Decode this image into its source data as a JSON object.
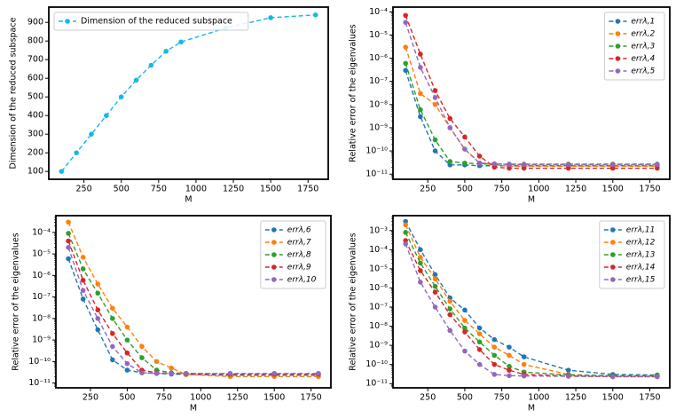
{
  "chart_data": [
    {
      "type": "line",
      "xlabel": "M",
      "ylabel": "Dimension of the reduced subspace",
      "x": [
        100,
        200,
        300,
        400,
        500,
        600,
        700,
        800,
        900,
        1200,
        1500,
        1800
      ],
      "xlim": [
        15,
        1885
      ],
      "xticks": [
        250,
        500,
        750,
        1000,
        1250,
        1500,
        1750
      ],
      "ylim": [
        58,
        982
      ],
      "yticks": [
        100,
        200,
        300,
        400,
        500,
        600,
        700,
        800,
        900
      ],
      "legend": "upper left",
      "series": [
        {
          "name": "Dimension of the reduced subspace",
          "color": "#17b8e8",
          "values": [
            100,
            200,
            300,
            400,
            500,
            590,
            670,
            745,
            795,
            870,
            925,
            940
          ]
        }
      ]
    },
    {
      "type": "line",
      "xlabel": "M",
      "ylabel": "Relative error of the eigenvalues",
      "yscale": "log",
      "x": [
        100,
        200,
        300,
        400,
        500,
        600,
        700,
        800,
        900,
        1200,
        1500,
        1800
      ],
      "xlim": [
        15,
        1885
      ],
      "xticks": [
        250,
        500,
        750,
        1000,
        1250,
        1500,
        1750
      ],
      "ylim": [
        6e-12,
        0.00016
      ],
      "yticks": [
        {
          "value": 1e-11,
          "label": "10⁻¹¹"
        },
        {
          "value": 1e-10,
          "label": "10⁻¹⁰"
        },
        {
          "value": 1e-09,
          "label": "10⁻⁹"
        },
        {
          "value": 1e-08,
          "label": "10⁻⁸"
        },
        {
          "value": 1e-07,
          "label": "10⁻⁷"
        },
        {
          "value": 1e-06,
          "label": "10⁻⁶"
        },
        {
          "value": 1e-05,
          "label": "10⁻⁵"
        },
        {
          "value": 0.0001,
          "label": "10⁻⁴"
        }
      ],
      "legend": "upper right",
      "series": [
        {
          "name": "errλ,1",
          "color": "#1f77b4",
          "values": [
            3e-07,
            3e-09,
            1e-10,
            2.5e-11,
            2.5e-11,
            2.3e-11,
            2.3e-11,
            2.3e-11,
            2.3e-11,
            2.3e-11,
            2.3e-11,
            2.3e-11
          ]
        },
        {
          "name": "errλ,2",
          "color": "#ff7f0e",
          "values": [
            3e-06,
            3e-08,
            1e-08,
            1e-09,
            1.2e-10,
            3e-11,
            2.5e-11,
            2.2e-11,
            2.2e-11,
            2.2e-11,
            2.2e-11,
            2.2e-11
          ]
        },
        {
          "name": "errλ,3",
          "color": "#2ca02c",
          "values": [
            6e-07,
            6e-09,
            3e-10,
            3.5e-11,
            3e-11,
            2.8e-11,
            2.7e-11,
            2.7e-11,
            2.7e-11,
            2.7e-11,
            2.7e-11,
            2.7e-11
          ]
        },
        {
          "name": "errλ,4",
          "color": "#d62728",
          "values": [
            7e-05,
            1.5e-06,
            4e-08,
            2.5e-09,
            4e-10,
            6e-11,
            2e-11,
            1.8e-11,
            1.8e-11,
            1.8e-11,
            1.8e-11,
            1.8e-11
          ]
        },
        {
          "name": "errλ,5",
          "color": "#9467bd",
          "values": [
            3.5e-05,
            4e-07,
            2e-08,
            1e-09,
            1.2e-10,
            3e-11,
            2.8e-11,
            2.6e-11,
            2.6e-11,
            2.6e-11,
            2.6e-11,
            2.6e-11
          ]
        }
      ]
    },
    {
      "type": "line",
      "xlabel": "M",
      "ylabel": "Relative error of the eigenvalues",
      "yscale": "log",
      "x": [
        100,
        200,
        300,
        400,
        500,
        600,
        700,
        800,
        900,
        1200,
        1500,
        1800
      ],
      "xlim": [
        15,
        1885
      ],
      "xticks": [
        250,
        500,
        750,
        1000,
        1250,
        1500,
        1750
      ],
      "ylim": [
        6e-12,
        0.0006
      ],
      "yticks": [
        {
          "value": 1e-11,
          "label": "10⁻¹¹"
        },
        {
          "value": 1e-10,
          "label": "10⁻¹⁰"
        },
        {
          "value": 1e-09,
          "label": "10⁻⁹"
        },
        {
          "value": 1e-08,
          "label": "10⁻⁸"
        },
        {
          "value": 1e-07,
          "label": "10⁻⁷"
        },
        {
          "value": 1e-06,
          "label": "10⁻⁶"
        },
        {
          "value": 1e-05,
          "label": "10⁻⁵"
        },
        {
          "value": 0.0001,
          "label": "10⁻⁴"
        }
      ],
      "legend": "upper right",
      "series": [
        {
          "name": "errλ,6",
          "color": "#1f77b4",
          "values": [
            6e-06,
            8e-08,
            3e-09,
            1.2e-10,
            4e-11,
            3e-11,
            2.8e-11,
            2.6e-11,
            2.5e-11,
            2.3e-11,
            2.3e-11,
            2.3e-11
          ]
        },
        {
          "name": "errλ,7",
          "color": "#ff7f0e",
          "values": [
            0.0003,
            7e-06,
            4e-07,
            3e-08,
            4e-09,
            5e-10,
            1e-10,
            5e-11,
            2.5e-11,
            2e-11,
            2e-11,
            2e-11
          ]
        },
        {
          "name": "errλ,8",
          "color": "#2ca02c",
          "values": [
            9e-05,
            2e-06,
            1.5e-07,
            1e-08,
            1e-09,
            1.5e-10,
            4e-11,
            3e-11,
            2.8e-11,
            2.6e-11,
            2.6e-11,
            2.6e-11
          ]
        },
        {
          "name": "errλ,9",
          "color": "#d62728",
          "values": [
            4e-05,
            6e-07,
            2.5e-08,
            2e-09,
            2.5e-10,
            4e-11,
            3e-11,
            2.8e-11,
            2.7e-11,
            2.6e-11,
            2.6e-11,
            2.6e-11
          ]
        },
        {
          "name": "errλ,10",
          "color": "#9467bd",
          "values": [
            2e-05,
            2e-07,
            1e-08,
            5e-10,
            8e-11,
            3e-11,
            2.8e-11,
            2.8e-11,
            2.8e-11,
            2.8e-11,
            2.8e-11,
            2.8e-11
          ]
        }
      ]
    },
    {
      "type": "line",
      "xlabel": "M",
      "ylabel": "Relative error of the eigenvalues",
      "yscale": "log",
      "x": [
        100,
        200,
        300,
        400,
        500,
        600,
        700,
        800,
        900,
        1200,
        1500,
        1800
      ],
      "xlim": [
        15,
        1885
      ],
      "xticks": [
        250,
        500,
        750,
        1000,
        1250,
        1500,
        1750
      ],
      "ylim": [
        6e-12,
        0.006
      ],
      "yticks": [
        {
          "value": 1e-11,
          "label": "10⁻¹¹"
        },
        {
          "value": 1e-10,
          "label": "10⁻¹⁰"
        },
        {
          "value": 1e-09,
          "label": "10⁻⁹"
        },
        {
          "value": 1e-08,
          "label": "10⁻⁸"
        },
        {
          "value": 1e-07,
          "label": "10⁻⁷"
        },
        {
          "value": 1e-06,
          "label": "10⁻⁶"
        },
        {
          "value": 1e-05,
          "label": "10⁻⁵"
        },
        {
          "value": 0.0001,
          "label": "10⁻⁴"
        },
        {
          "value": 0.001,
          "label": "10⁻³"
        }
      ],
      "legend": "upper right",
      "series": [
        {
          "name": "errλ,11",
          "color": "#1f77b4",
          "values": [
            0.003,
            0.0001,
            5e-06,
            3e-07,
            7e-08,
            8e-09,
            2e-09,
            8e-10,
            2.5e-10,
            5e-11,
            3e-11,
            2.8e-11
          ]
        },
        {
          "name": "errλ,12",
          "color": "#ff7f0e",
          "values": [
            0.002,
            4e-05,
            3e-06,
            2e-07,
            2e-08,
            4e-09,
            8e-10,
            3e-10,
            1e-10,
            3e-11,
            2.5e-11,
            2.5e-11
          ]
        },
        {
          "name": "errλ,13",
          "color": "#2ca02c",
          "values": [
            0.0008,
            2e-05,
            1.2e-06,
            8e-08,
            8e-09,
            1.5e-09,
            3e-10,
            8e-11,
            4e-11,
            2.8e-11,
            2.6e-11,
            2.6e-11
          ]
        },
        {
          "name": "errλ,14",
          "color": "#d62728",
          "values": [
            0.0003,
            8e-06,
            6e-07,
            4e-08,
            5e-09,
            6e-10,
            1e-10,
            5e-11,
            3e-11,
            2.5e-11,
            2.3e-11,
            2.3e-11
          ]
        },
        {
          "name": "errλ,15",
          "color": "#9467bd",
          "values": [
            0.0002,
            2e-06,
            1e-07,
            6e-09,
            5e-10,
            1e-10,
            3e-11,
            2.6e-11,
            2.5e-11,
            2.4e-11,
            2.3e-11,
            2.3e-11
          ]
        }
      ]
    }
  ]
}
